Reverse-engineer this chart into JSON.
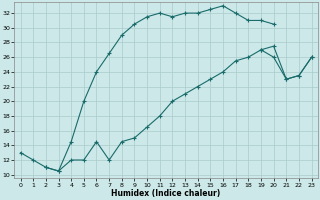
{
  "title": "",
  "xlabel": "Humidex (Indice chaleur)",
  "ylabel": "",
  "bg_color": "#cce8e8",
  "grid_color": "#aacccc",
  "line_color": "#1a6b6b",
  "xlim": [
    -0.5,
    23.5
  ],
  "ylim": [
    9.5,
    33.5
  ],
  "xticks": [
    0,
    1,
    2,
    3,
    4,
    5,
    6,
    7,
    8,
    9,
    10,
    11,
    12,
    13,
    14,
    15,
    16,
    17,
    18,
    19,
    20,
    21,
    22,
    23
  ],
  "yticks": [
    10,
    12,
    14,
    16,
    18,
    20,
    22,
    24,
    26,
    28,
    30,
    32
  ],
  "line1_x": [
    0,
    1,
    2,
    3,
    4,
    5,
    6,
    7,
    8,
    9,
    10,
    11,
    12,
    13,
    14,
    15,
    16,
    17,
    18,
    19,
    20
  ],
  "line1_y": [
    13,
    12,
    11,
    10.5,
    14.5,
    20,
    24,
    26.5,
    29,
    30.5,
    31.5,
    32,
    31.5,
    32,
    32,
    32.5,
    33,
    32,
    31,
    31,
    30.5
  ],
  "line2_x": [
    2,
    3,
    4,
    5,
    6,
    7,
    8,
    9,
    10,
    11,
    12,
    13,
    14,
    15,
    16,
    17,
    18,
    19,
    20,
    21,
    22,
    23
  ],
  "line2_y": [
    11,
    10.5,
    12,
    12,
    14.5,
    12,
    14.5,
    15,
    16.5,
    18,
    20,
    21,
    22,
    23,
    24,
    25.5,
    26,
    27,
    27.5,
    23,
    23.5,
    26
  ],
  "line3_x": [
    19,
    20,
    21,
    22,
    23
  ],
  "line3_y": [
    27,
    26,
    23,
    23.5,
    26
  ]
}
